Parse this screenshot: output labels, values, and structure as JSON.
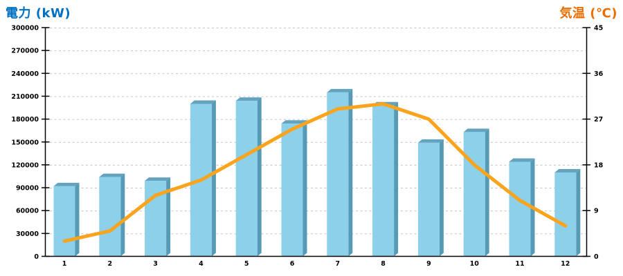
{
  "chart_data": {
    "type": "bar",
    "subtype": "combo-bar-line-dual-axis",
    "categories": [
      "1",
      "2",
      "3",
      "4",
      "5",
      "6",
      "7",
      "8",
      "9",
      "10",
      "11",
      "12"
    ],
    "series": [
      {
        "name": "電力",
        "type": "bar",
        "axis": "left",
        "unit": "kW",
        "color": "#8CD0EA",
        "top_color": "#64A3BE",
        "side_color": "#579AB6",
        "values": [
          92000,
          104000,
          99000,
          200000,
          204000,
          174000,
          215000,
          198000,
          149000,
          163000,
          124000,
          110000
        ]
      },
      {
        "name": "気温",
        "type": "line",
        "axis": "right",
        "unit": "℃",
        "color": "#F9A41C",
        "values": [
          3,
          5,
          12,
          15,
          20,
          25,
          29,
          30,
          27,
          18,
          11,
          6
        ]
      }
    ],
    "left_axis": {
      "title": "電力 (kW)",
      "title_color": "#0070C0",
      "min": 0,
      "max": 300000,
      "tick_step": 30000,
      "ticks": [
        "0",
        "30000",
        "60000",
        "90000",
        "120000",
        "150000",
        "180000",
        "210000",
        "240000",
        "270000",
        "300000"
      ]
    },
    "right_axis": {
      "title": "気温 (℃)",
      "title_color": "#ED6C00",
      "min": 0,
      "max": 45,
      "tick_step": 9,
      "ticks": [
        "0",
        "9",
        "18",
        "27",
        "36",
        "45"
      ]
    },
    "x_axis": {
      "labels": [
        "1",
        "2",
        "3",
        "4",
        "5",
        "6",
        "7",
        "8",
        "9",
        "10",
        "11",
        "12"
      ]
    },
    "grid": {
      "horizontal": true,
      "style": "dashed",
      "color": "#C3C3C3"
    },
    "axis_line_color": "#000000",
    "legend": "none"
  }
}
